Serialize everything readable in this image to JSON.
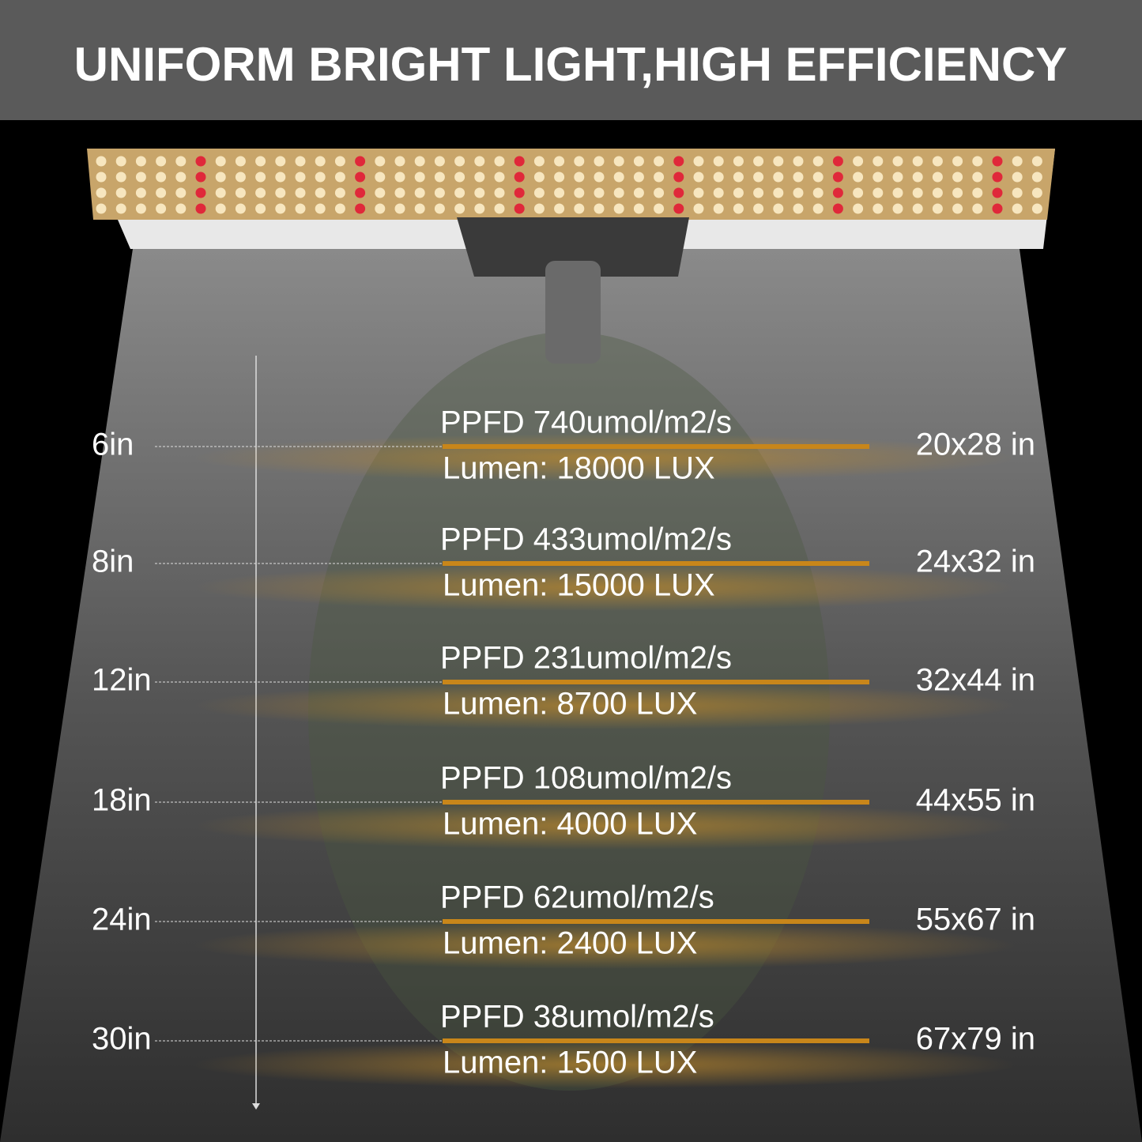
{
  "header": {
    "title": "UNIFORM BRIGHT LIGHT,HIGH EFFICIENCY"
  },
  "rows": [
    {
      "distance": "6in",
      "ppfd": "PPFD 740umol/m2/s",
      "lumen": "Lumen: 18000 LUX",
      "coverage": "20x28 in"
    },
    {
      "distance": "8in",
      "ppfd": "PPFD 433umol/m2/s",
      "lumen": "Lumen: 15000 LUX",
      "coverage": "24x32 in"
    },
    {
      "distance": "12in",
      "ppfd": "PPFD 231umol/m2/s",
      "lumen": "Lumen: 8700 LUX",
      "coverage": "32x44 in"
    },
    {
      "distance": "18in",
      "ppfd": "PPFD 108umol/m2/s",
      "lumen": "Lumen: 4000 LUX",
      "coverage": "44x55 in"
    },
    {
      "distance": "24in",
      "ppfd": "PPFD 62umol/m2/s",
      "lumen": "Lumen: 2400 LUX",
      "coverage": "55x67 in"
    },
    {
      "distance": "30in",
      "ppfd": "PPFD 38umol/m2/s",
      "lumen": "Lumen: 1500 LUX",
      "coverage": "67x79 in"
    }
  ]
}
